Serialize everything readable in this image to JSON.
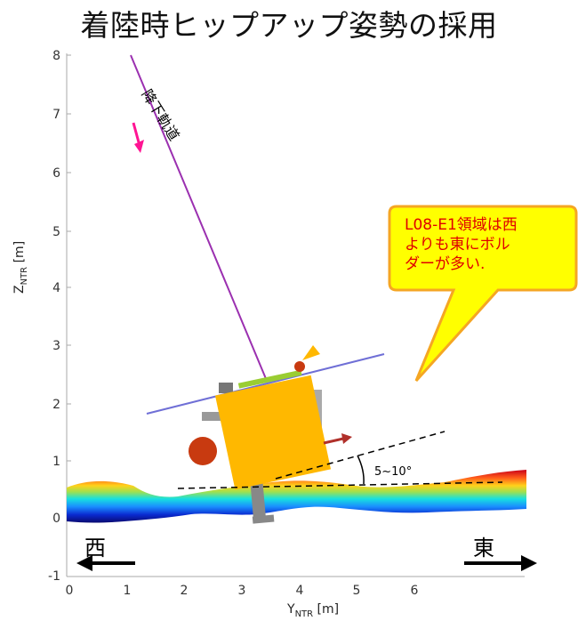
{
  "title": "着陸時ヒップアップ姿勢の採用",
  "callout": {
    "lines": [
      "L08-E1領域は西",
      "よりも東にボル",
      "ダーが多い."
    ],
    "fill": "#ffff00",
    "stroke": "#f5a623",
    "text_color": "#e00000"
  },
  "trajectory_label": "降下軌道",
  "angle_label": "5~10°",
  "directions": {
    "west": "西",
    "east": "東"
  },
  "axes": {
    "y_label_main": "Z",
    "y_label_sub": "NTR",
    "y_label_unit": " [m]",
    "x_label_main": "Y",
    "x_label_sub": "NTR",
    "x_label_unit": " [m]",
    "x_ticks": [
      "0",
      "1",
      "2",
      "3",
      "4",
      "5",
      "6"
    ],
    "y_ticks": [
      "8",
      "7",
      "6",
      "5",
      "4",
      "3",
      "2",
      "1",
      "0",
      "-1"
    ]
  },
  "colors": {
    "trajectory": "#9b30b0",
    "attitude_line": "#6f6fd6",
    "spacecraft_body": "#ffb800",
    "arrow_magenta": "#ff1493",
    "velocity_arrow": "#b0302a"
  }
}
